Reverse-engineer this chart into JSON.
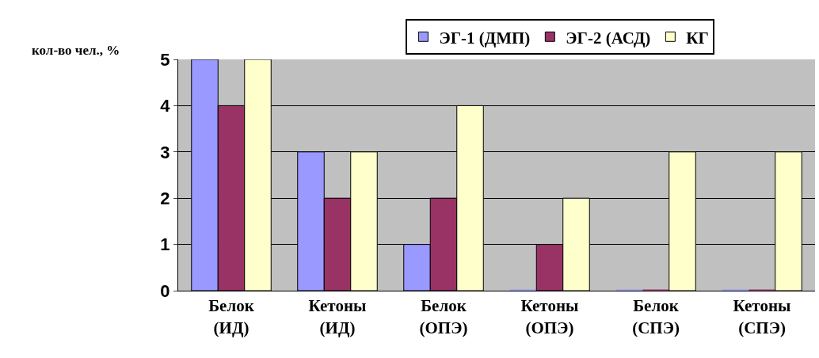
{
  "chart_data": {
    "type": "bar",
    "ylabel": "кол-во чел., %",
    "categories": [
      "Белок (ИД)",
      "Кетоны (ИД)",
      "Белок (ОПЭ)",
      "Кетоны (ОПЭ)",
      "Белок (СПЭ)",
      "Кетоны (СПЭ)"
    ],
    "series": [
      {
        "name": "ЭГ-1 (ДМП)",
        "color": "#9999ff",
        "values": [
          5,
          3,
          1,
          0,
          0,
          0
        ]
      },
      {
        "name": "ЭГ-2 (АСД)",
        "color": "#993366",
        "values": [
          4,
          2,
          2,
          1,
          0,
          0
        ]
      },
      {
        "name": "КГ",
        "color": "#ffffcc",
        "values": [
          5,
          3,
          4,
          2,
          3,
          3
        ]
      }
    ],
    "ylim": [
      0,
      5
    ],
    "yticks": [
      0,
      1,
      2,
      3,
      4,
      5
    ],
    "grid": "y",
    "legend": "top"
  }
}
